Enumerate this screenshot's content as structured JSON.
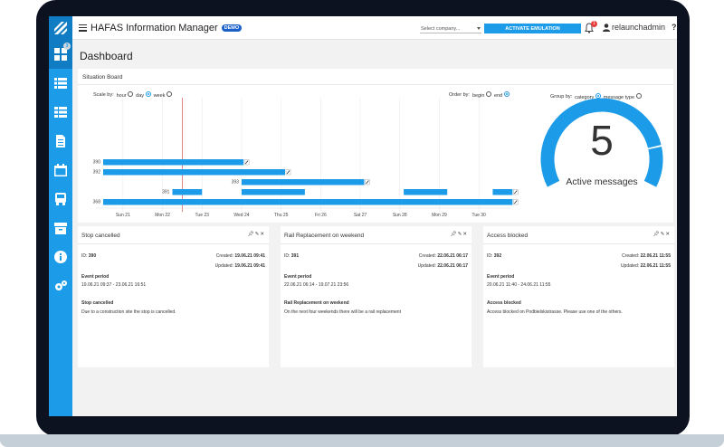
{
  "app": {
    "title": "HAFAS Information Manager",
    "badge": "DEMO"
  },
  "topbar": {
    "company_select": "Select company...",
    "emulation_button": "ACTIVATE EMULATION",
    "notification_count": "1",
    "username": "relaunchadmin",
    "help": "?"
  },
  "sidebar": {
    "dashboard_badge": "3",
    "items": [
      "dashboard-icon",
      "list-icon",
      "table-icon",
      "document-icon",
      "calendar-icon",
      "train-icon",
      "archive-icon",
      "info-icon",
      "settings-icon"
    ]
  },
  "page": {
    "title": "Dashboard"
  },
  "situation_board": {
    "title": "Situation Board",
    "scale_label": "Scale by:",
    "scale_options": [
      "hour",
      "day",
      "week"
    ],
    "scale_selected": "day",
    "order_label": "Order by:",
    "order_options": [
      "begin",
      "end"
    ],
    "order_selected": "end",
    "group_label": "Group by:",
    "group_options": [
      "category",
      "message type"
    ],
    "group_selected": "category",
    "accent_color": "#1b9be8"
  },
  "chart_data": {
    "type": "bar",
    "x_ticks": [
      "Sun 21",
      "Mon 22",
      "Tue 23",
      "Wed 24",
      "Thu 25",
      "Fri 26",
      "Sat 27",
      "Sun 28",
      "Mon 29",
      "Tue 30"
    ],
    "rows": [
      {
        "id": "390",
        "segments": [
          [
            0,
            3.55
          ]
        ]
      },
      {
        "id": "392",
        "segments": [
          [
            0,
            4.6
          ]
        ]
      },
      {
        "id": "393",
        "segments": [
          [
            3.5,
            6.6
          ]
        ]
      },
      {
        "id": "391",
        "segments": [
          [
            1.75,
            2.5
          ],
          [
            3.5,
            5.1
          ],
          [
            7.6,
            8.7
          ],
          [
            9.85,
            10.35
          ]
        ]
      },
      {
        "id": "368",
        "segments": [
          [
            0,
            10.35
          ]
        ]
      }
    ],
    "now_line": 2
  },
  "gauge": {
    "value": "5",
    "label": "Active messages",
    "fill_fraction": 0.83
  },
  "cards": [
    {
      "title": "Stop cancelled",
      "id_label": "ID:",
      "id": "390",
      "created_label": "Created:",
      "created": "19.06.21 09:41",
      "updated_label": "Updated:",
      "updated": "19.06.21 09:41",
      "period_label": "Event period",
      "period": "19.06.21 09:37 - 23.06.21 16:51",
      "heading": "Stop cancelled",
      "body": "Due to a construction site the stop is cancelled."
    },
    {
      "title": "Rail Replacement on weekend",
      "id_label": "ID:",
      "id": "391",
      "created_label": "Created:",
      "created": "22.06.21 06:17",
      "updated_label": "Updated:",
      "updated": "22.06.21 06:17",
      "period_label": "Event period",
      "period": "22.06.21 06:14 - 19.07.21 23:56",
      "heading": "Rail Replacement on weekend",
      "body": "On the next four weekends there will be a rail replacement"
    },
    {
      "title": "Access blocked",
      "id_label": "ID:",
      "id": "392",
      "created_label": "Created:",
      "created": "22.06.21 11:55",
      "updated_label": "Updated:",
      "updated": "22.06.21 11:55",
      "period_label": "Event period",
      "period": "20.06.21 11:40 - 24.06.21 11:55",
      "heading": "Access blocked",
      "body": "Access blocked on Podbielskistrasse. Please use one of the others."
    }
  ]
}
